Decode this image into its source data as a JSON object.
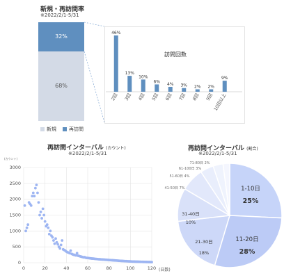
{
  "stack_panel": {
    "title": "新規・再訪問率",
    "date": "※2022/2/1-5/31",
    "legend_new": "新規",
    "legend_return": "再訪問"
  },
  "visits_panel": {
    "title": "訪問回数"
  },
  "interval_panel": {
    "title": "再訪問インターバル",
    "title_note": "(カウント)",
    "date": "※2022/2/1-5/31",
    "y_unit": "(カウント)",
    "x_unit": "(日数)"
  },
  "ratio_panel": {
    "title": "再訪問インターバル",
    "title_note": "(割合)",
    "date": "※2022/2/1-5/31"
  },
  "colors": {
    "return": "#5f8fbf",
    "new": "#d3dae6",
    "bar": "#5f8fbf",
    "scatter": "#9db5f2",
    "pie": [
      "#c6d4f9",
      "#bccbf6",
      "#cdd8f8",
      "#d9e1f9",
      "#e2e8fb",
      "#e9eefc",
      "#eff3fd",
      "#f4f6fe"
    ]
  },
  "chart_data": [
    {
      "type": "bar",
      "stacked": true,
      "categories": [
        ""
      ],
      "series": [
        {
          "name": "新規",
          "values": [
            68
          ],
          "label": "68%"
        },
        {
          "name": "再訪問",
          "values": [
            32
          ],
          "label": "32%"
        }
      ],
      "ylim": [
        0,
        100
      ]
    },
    {
      "type": "bar",
      "title": "訪問回数",
      "categories": [
        "2回",
        "3回",
        "4回",
        "5回",
        "6回",
        "7回",
        "8回",
        "9回",
        "10回以上"
      ],
      "values": [
        46,
        13,
        10,
        6,
        4,
        3,
        2,
        2,
        9
      ],
      "labels": [
        "46%",
        "13%",
        "10%",
        "6%",
        "4%",
        "3%",
        "2%",
        "2%",
        "9%"
      ],
      "ylim": [
        0,
        50
      ]
    },
    {
      "type": "scatter",
      "title": "再訪問インターバル",
      "xlim": [
        0,
        120
      ],
      "ylim": [
        0,
        3000
      ],
      "xticks": [
        "0",
        "20",
        "40",
        "60",
        "80",
        "100",
        "120"
      ],
      "yticks": [
        "0",
        "500",
        "1000",
        "1500",
        "2000",
        "2500",
        "3000"
      ],
      "grid": true,
      "x": [
        1,
        2,
        3,
        4,
        5,
        6,
        7,
        8,
        9,
        10,
        11,
        12,
        13,
        14,
        15,
        16,
        17,
        18,
        19,
        20,
        21,
        22,
        23,
        24,
        25,
        26,
        27,
        28,
        29,
        30,
        31,
        32,
        33,
        34,
        35,
        36,
        37,
        38,
        39,
        40,
        41,
        42,
        43,
        44,
        45,
        46,
        47,
        48,
        49,
        50,
        51,
        52,
        53,
        54,
        55,
        56,
        57,
        58,
        59,
        60,
        61,
        62,
        63,
        64,
        65,
        66,
        67,
        68,
        69,
        70,
        71,
        72,
        73,
        74,
        75,
        76,
        77,
        78,
        79,
        80,
        81,
        82,
        83,
        84,
        85,
        86,
        87,
        88,
        89,
        90,
        91,
        92,
        93,
        94,
        95,
        96,
        97,
        98,
        99,
        100,
        101,
        102,
        103,
        104,
        105,
        106,
        107,
        108,
        109,
        110,
        111,
        112,
        113,
        114,
        115,
        116,
        117,
        118,
        119,
        120
      ],
      "y": [
        1800,
        1000,
        1100,
        1200,
        1900,
        1850,
        1800,
        2100,
        2200,
        2100,
        2350,
        2450,
        2200,
        1900,
        1500,
        1600,
        1400,
        1700,
        1500,
        1300,
        1150,
        1200,
        1100,
        900,
        1000,
        850,
        800,
        700,
        600,
        760,
        640,
        580,
        500,
        450,
        560,
        700,
        420,
        400,
        380,
        350,
        330,
        320,
        300,
        380,
        280,
        260,
        250,
        240,
        230,
        300,
        220,
        210,
        200,
        190,
        180,
        170,
        175,
        160,
        150,
        150,
        145,
        140,
        135,
        130,
        130,
        125,
        120,
        118,
        115,
        110,
        108,
        105,
        102,
        100,
        98,
        95,
        92,
        90,
        88,
        85,
        82,
        80,
        78,
        75,
        72,
        70,
        68,
        65,
        62,
        60,
        58,
        56,
        54,
        52,
        50,
        48,
        46,
        44,
        42,
        40,
        38,
        36,
        35,
        34,
        33,
        32,
        31,
        30,
        29,
        28,
        27,
        26,
        25,
        24,
        23,
        22,
        21,
        20,
        19,
        18
      ]
    },
    {
      "type": "pie",
      "title": "再訪問インターバル",
      "categories": [
        "1-10日",
        "11-20日",
        "21-30日",
        "31-40日",
        "41-50日",
        "51-60日",
        "61-100日",
        "71-80日"
      ],
      "values": [
        25,
        28,
        18,
        10,
        7,
        4,
        3,
        2
      ],
      "labels": [
        "25%",
        "28%",
        "18%",
        "10%",
        "7%",
        "4%",
        "3%",
        "2%"
      ]
    }
  ]
}
